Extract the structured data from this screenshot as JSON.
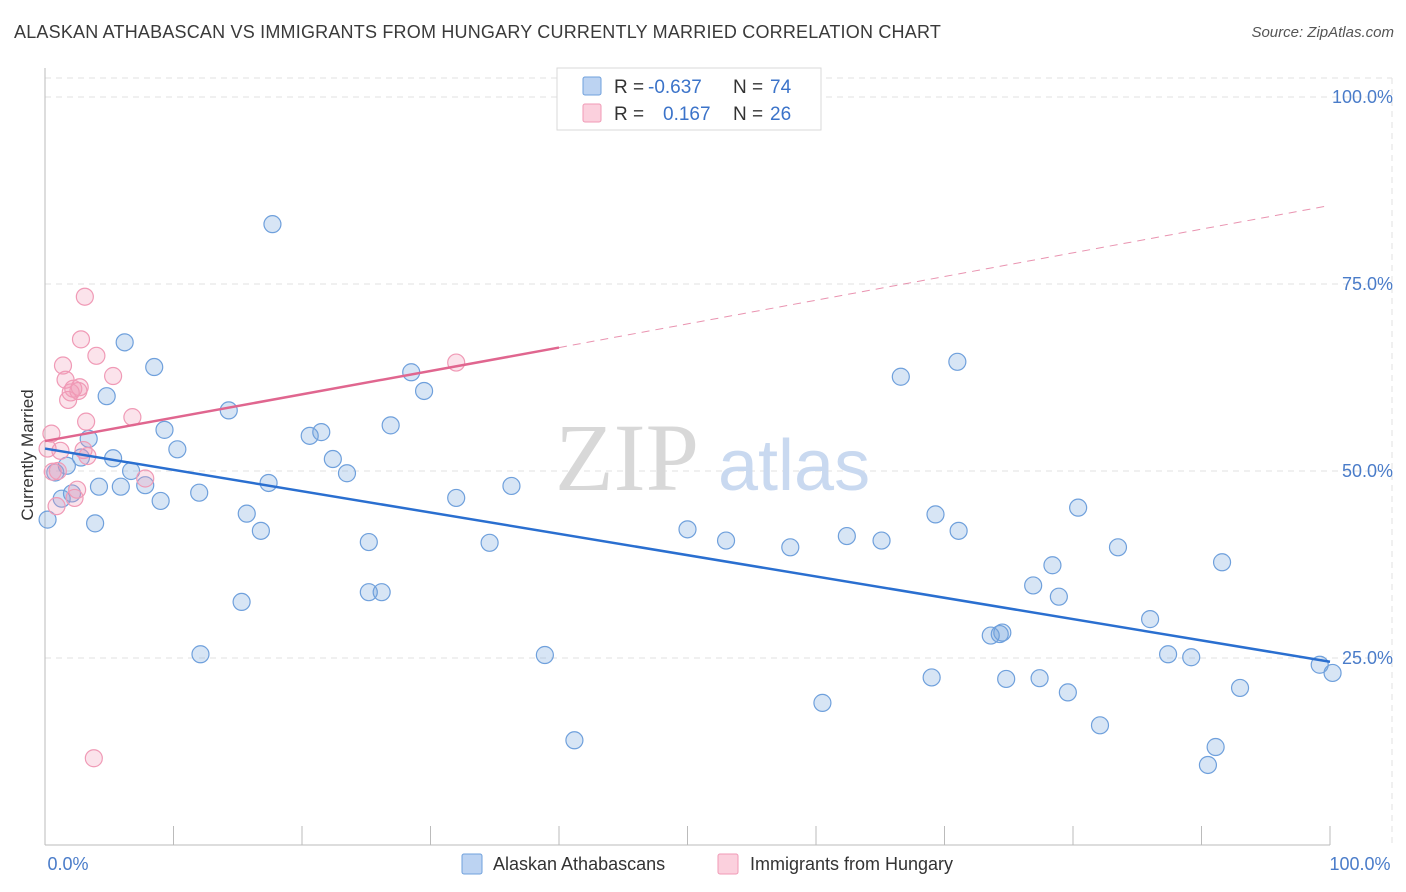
{
  "title": "ALASKAN ATHABASCAN VS IMMIGRANTS FROM HUNGARY CURRENTLY MARRIED CORRELATION CHART",
  "source": "Source: ZipAtlas.com",
  "watermark": {
    "zip": "ZIP",
    "atlas": "atlas"
  },
  "colors": {
    "blue": "#6fa0dc",
    "blue_line": "#2a6fd0",
    "pink": "#f09ab6",
    "pink_line": "#e0668f"
  },
  "legend": {
    "rows": [
      {
        "r_label": "R =",
        "r_value": "-0.637",
        "n_label": "N =",
        "n_value": "74"
      },
      {
        "r_label": "R =",
        "r_value": "0.167",
        "n_label": "N =",
        "n_value": "26"
      }
    ]
  },
  "chart_data": {
    "type": "scatter",
    "xlabel": "",
    "ylabel": "Currently Married",
    "xlim": [
      0,
      100
    ],
    "ylim": [
      0,
      100
    ],
    "x_tick_labels": [
      "0.0%",
      "100.0%"
    ],
    "y_tick_labels": [
      {
        "value": 25,
        "label": "25.0%"
      },
      {
        "value": 50,
        "label": "50.0%"
      },
      {
        "value": 75,
        "label": "75.0%"
      },
      {
        "value": 100,
        "label": "100.0%"
      }
    ],
    "series": [
      {
        "name": "Alaskan Athabascans",
        "color": "#6fa0dc",
        "trend": {
          "x": [
            0,
            100
          ],
          "y": [
            53.0,
            24.5
          ],
          "dashed_extension": false
        },
        "points": [
          [
            0.2,
            43.5
          ],
          [
            0.8,
            49.8
          ],
          [
            1.3,
            46.3
          ],
          [
            1.7,
            50.7
          ],
          [
            2.1,
            47.0
          ],
          [
            2.8,
            51.8
          ],
          [
            3.4,
            54.3
          ],
          [
            3.9,
            43.0
          ],
          [
            4.2,
            47.9
          ],
          [
            4.8,
            60.0
          ],
          [
            5.3,
            51.7
          ],
          [
            5.9,
            47.9
          ],
          [
            6.2,
            67.2
          ],
          [
            6.7,
            50.0
          ],
          [
            7.8,
            48.1
          ],
          [
            8.5,
            63.9
          ],
          [
            9.0,
            46.0
          ],
          [
            9.3,
            55.5
          ],
          [
            10.3,
            52.9
          ],
          [
            12.0,
            47.1
          ],
          [
            12.1,
            25.5
          ],
          [
            14.3,
            58.1
          ],
          [
            15.3,
            32.5
          ],
          [
            15.7,
            44.3
          ],
          [
            16.8,
            42.0
          ],
          [
            17.4,
            48.4
          ],
          [
            17.7,
            83.0
          ],
          [
            20.6,
            54.7
          ],
          [
            21.5,
            55.2
          ],
          [
            22.4,
            51.6
          ],
          [
            23.5,
            49.7
          ],
          [
            25.2,
            40.5
          ],
          [
            25.2,
            33.8
          ],
          [
            26.2,
            33.8
          ],
          [
            26.9,
            56.1
          ],
          [
            28.5,
            63.2
          ],
          [
            29.5,
            60.7
          ],
          [
            32.0,
            46.4
          ],
          [
            34.6,
            40.4
          ],
          [
            36.3,
            48.0
          ],
          [
            38.9,
            25.4
          ],
          [
            41.2,
            14.0
          ],
          [
            50.0,
            42.2
          ],
          [
            53.0,
            40.7
          ],
          [
            58.0,
            39.8
          ],
          [
            60.5,
            19.0
          ],
          [
            62.4,
            41.3
          ],
          [
            65.1,
            40.7
          ],
          [
            66.6,
            62.6
          ],
          [
            69.0,
            22.4
          ],
          [
            69.3,
            44.2
          ],
          [
            71.0,
            64.6
          ],
          [
            71.1,
            42.0
          ],
          [
            73.6,
            28.0
          ],
          [
            74.3,
            28.2
          ],
          [
            74.5,
            28.4
          ],
          [
            74.8,
            22.2
          ],
          [
            76.9,
            34.7
          ],
          [
            77.4,
            22.3
          ],
          [
            78.4,
            37.4
          ],
          [
            78.9,
            33.2
          ],
          [
            79.6,
            20.4
          ],
          [
            80.4,
            45.1
          ],
          [
            82.1,
            16.0
          ],
          [
            83.5,
            39.8
          ],
          [
            86.0,
            30.2
          ],
          [
            87.4,
            25.5
          ],
          [
            89.2,
            25.1
          ],
          [
            90.5,
            10.7
          ],
          [
            91.1,
            13.1
          ],
          [
            91.6,
            37.8
          ],
          [
            93.0,
            21.0
          ],
          [
            99.2,
            24.1
          ],
          [
            100.2,
            23.0
          ]
        ]
      },
      {
        "name": "Immigrants from Hungary",
        "color": "#f09ab6",
        "trend": {
          "x": [
            0,
            40,
            100
          ],
          "y": [
            54.0,
            66.5,
            85.5
          ],
          "dashed_extension": true
        },
        "points": [
          [
            0.2,
            53.0
          ],
          [
            0.5,
            55.0
          ],
          [
            0.6,
            49.9
          ],
          [
            0.9,
            45.3
          ],
          [
            1.0,
            50.0
          ],
          [
            1.2,
            52.7
          ],
          [
            1.4,
            64.1
          ],
          [
            1.6,
            62.2
          ],
          [
            1.8,
            59.5
          ],
          [
            2.0,
            60.5
          ],
          [
            2.2,
            61.0
          ],
          [
            2.3,
            46.4
          ],
          [
            2.5,
            47.5
          ],
          [
            2.6,
            60.7
          ],
          [
            2.7,
            61.2
          ],
          [
            2.8,
            67.6
          ],
          [
            3.0,
            52.8
          ],
          [
            3.1,
            73.3
          ],
          [
            3.2,
            56.6
          ],
          [
            3.3,
            52.0
          ],
          [
            3.8,
            11.6
          ],
          [
            4.0,
            65.4
          ],
          [
            5.3,
            62.7
          ],
          [
            6.8,
            57.2
          ],
          [
            7.8,
            49.0
          ],
          [
            32.0,
            64.5
          ]
        ]
      }
    ],
    "grid": true,
    "legend_position": "top-center"
  },
  "bottom_legend": [
    "Alaskan Athabascans",
    "Immigrants from Hungary"
  ]
}
